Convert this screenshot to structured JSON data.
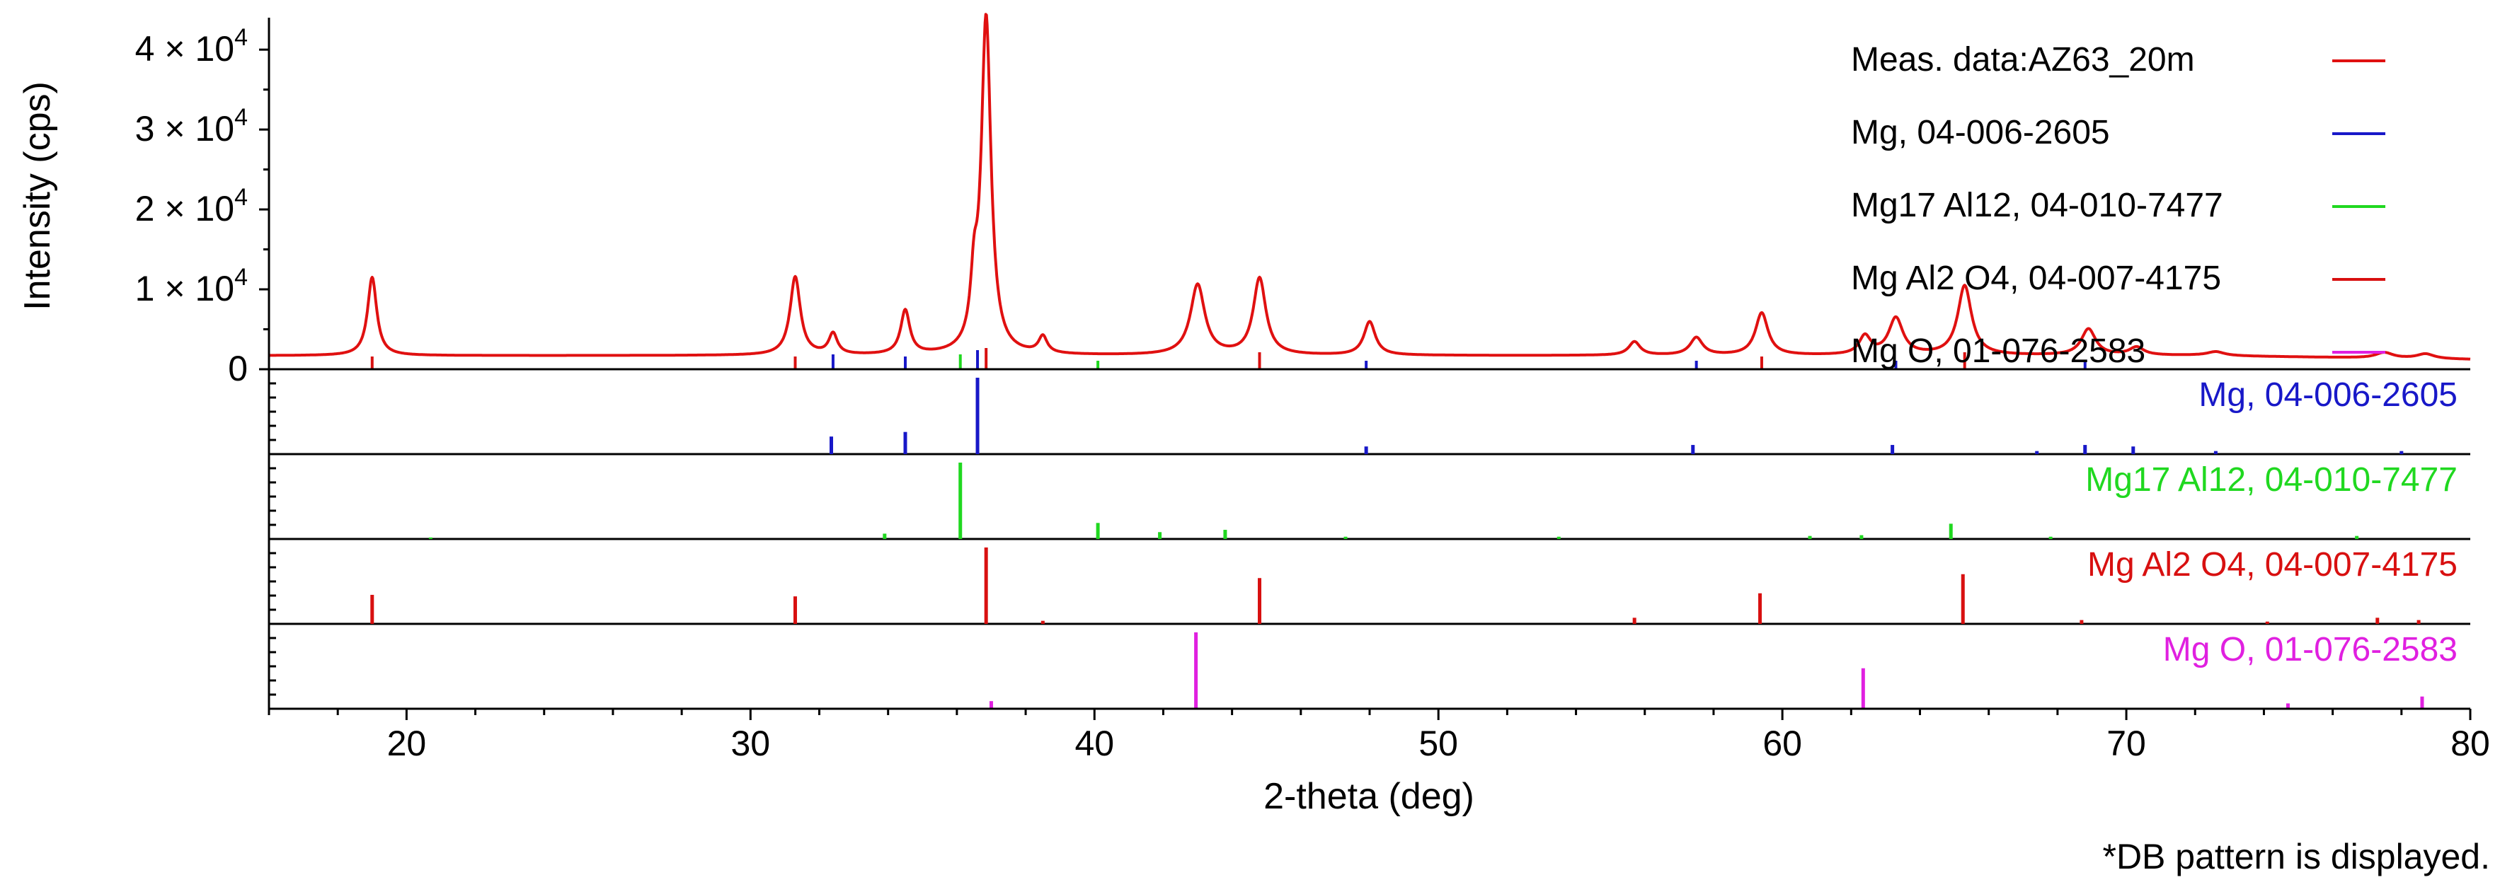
{
  "chart_data": {
    "type": "line",
    "xlabel": "2-theta (deg)",
    "ylabel": "Intensity (cps)",
    "xlim": [
      16,
      80
    ],
    "x_ticks": [
      20,
      30,
      40,
      50,
      60,
      70,
      80
    ],
    "ylim": [
      0,
      44000
    ],
    "y_ticks": [
      {
        "value": 0,
        "label": "0"
      },
      {
        "value": 10000,
        "label": "1 × 10⁴"
      },
      {
        "value": 20000,
        "label": "2 × 10⁴"
      },
      {
        "value": 30000,
        "label": "3 × 10⁴"
      },
      {
        "value": 40000,
        "label": "4 × 10⁴"
      }
    ],
    "legend_position": "top-right",
    "footnote": "*DB pattern is displayed.",
    "series": [
      {
        "name": "Meas. data:AZ63_20m",
        "color": "#e01010",
        "baseline": 1700,
        "peaks": [
          {
            "x": 19.0,
            "y": 9800,
            "w": 0.16
          },
          {
            "x": 31.3,
            "y": 9800,
            "w": 0.18
          },
          {
            "x": 32.4,
            "y": 2600,
            "w": 0.15
          },
          {
            "x": 34.5,
            "y": 5500,
            "w": 0.16
          },
          {
            "x": 36.5,
            "y": 7000,
            "w": 0.12
          },
          {
            "x": 36.85,
            "y": 42000,
            "w": 0.17
          },
          {
            "x": 38.5,
            "y": 2100,
            "w": 0.15
          },
          {
            "x": 43.0,
            "y": 8800,
            "w": 0.25
          },
          {
            "x": 44.8,
            "y": 9600,
            "w": 0.22
          },
          {
            "x": 48.0,
            "y": 4200,
            "w": 0.2
          },
          {
            "x": 55.7,
            "y": 1700,
            "w": 0.2
          },
          {
            "x": 57.5,
            "y": 2200,
            "w": 0.22
          },
          {
            "x": 59.4,
            "y": 5300,
            "w": 0.22
          },
          {
            "x": 62.4,
            "y": 2300,
            "w": 0.2
          },
          {
            "x": 63.3,
            "y": 4600,
            "w": 0.25
          },
          {
            "x": 65.3,
            "y": 8700,
            "w": 0.24
          },
          {
            "x": 68.9,
            "y": 3300,
            "w": 0.25
          },
          {
            "x": 70.3,
            "y": 1000,
            "w": 0.25
          },
          {
            "x": 72.6,
            "y": 500,
            "w": 0.3
          },
          {
            "x": 77.5,
            "y": 700,
            "w": 0.3
          },
          {
            "x": 78.7,
            "y": 600,
            "w": 0.3
          }
        ]
      },
      {
        "name": "Mg, 04-006-2605",
        "color": "#1818c8",
        "top_marks": [
          [
            32.4,
            0.35
          ],
          [
            34.5,
            0.3
          ],
          [
            36.6,
            0.45
          ],
          [
            47.9,
            0.2
          ],
          [
            57.5,
            0.2
          ],
          [
            63.3,
            0.2
          ],
          [
            68.8,
            0.2
          ]
        ],
        "sticks": [
          [
            32.35,
            0.23
          ],
          [
            34.5,
            0.29
          ],
          [
            36.6,
            1.0
          ],
          [
            47.9,
            0.1
          ],
          [
            57.4,
            0.12
          ],
          [
            63.2,
            0.12
          ],
          [
            67.4,
            0.04
          ],
          [
            68.8,
            0.12
          ],
          [
            70.2,
            0.1
          ],
          [
            72.6,
            0.04
          ],
          [
            78.0,
            0.04
          ]
        ]
      },
      {
        "name": "Mg17 Al12, 04-010-7477",
        "color": "#20d820",
        "top_marks": [
          [
            36.1,
            0.35
          ],
          [
            40.1,
            0.2
          ]
        ],
        "sticks": [
          [
            20.7,
            0.02
          ],
          [
            33.9,
            0.07
          ],
          [
            36.1,
            1.0
          ],
          [
            40.1,
            0.21
          ],
          [
            41.9,
            0.09
          ],
          [
            43.8,
            0.12
          ],
          [
            47.3,
            0.03
          ],
          [
            53.5,
            0.03
          ],
          [
            60.8,
            0.04
          ],
          [
            62.3,
            0.05
          ],
          [
            64.9,
            0.2
          ],
          [
            67.8,
            0.03
          ],
          [
            76.7,
            0.04
          ]
        ]
      },
      {
        "name": "Mg Al2 O4, 04-007-4175",
        "color": "#d81010",
        "top_marks": [
          [
            19.0,
            0.3
          ],
          [
            31.3,
            0.3
          ],
          [
            36.85,
            0.5
          ],
          [
            44.8,
            0.4
          ],
          [
            59.4,
            0.3
          ],
          [
            65.3,
            0.4
          ]
        ],
        "sticks": [
          [
            19.0,
            0.38
          ],
          [
            31.3,
            0.36
          ],
          [
            36.85,
            1.0
          ],
          [
            38.5,
            0.04
          ],
          [
            44.8,
            0.6
          ],
          [
            55.7,
            0.08
          ],
          [
            59.35,
            0.4
          ],
          [
            65.25,
            0.65
          ],
          [
            68.7,
            0.05
          ],
          [
            74.1,
            0.03
          ],
          [
            77.3,
            0.08
          ],
          [
            78.5,
            0.05
          ]
        ]
      },
      {
        "name": "Mg O, 01-076-2583",
        "color": "#e020e0",
        "top_marks": [],
        "sticks": [
          [
            37.0,
            0.1
          ],
          [
            42.95,
            1.0
          ],
          [
            62.35,
            0.53
          ],
          [
            74.7,
            0.07
          ],
          [
            78.6,
            0.16
          ]
        ]
      }
    ]
  }
}
